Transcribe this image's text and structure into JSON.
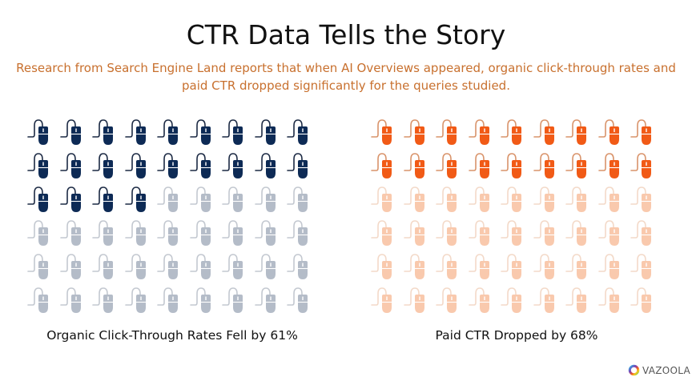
{
  "title": "CTR Data Tells the Story",
  "subtitle": "Research from Search Engine Land reports that when AI Overviews appeared, organic click-through rates and paid CTR dropped  significantly for the queries studied.",
  "colors": {
    "organic_active": "#0d2a55",
    "organic_inactive": "#b4bcc8",
    "paid_active": "#f15a16",
    "paid_inactive": "#f9c9ad",
    "paid_cord_active": "#d9936a",
    "paid_cord_inactive": "#f3d9c8",
    "organic_cord_active": "#1c2a44",
    "organic_cord_inactive": "#c3c8d0",
    "subtitle": "#c8702e"
  },
  "icon": "computer-mouse-icon",
  "charts": {
    "organic": {
      "label": "Organic Click-Through Rates Fell by 61%",
      "total_icons": 54,
      "active_icons": 22
    },
    "paid": {
      "label": "Paid CTR Dropped by 68%",
      "total_icons": 54,
      "active_icons": 18
    }
  },
  "logo": {
    "text": "VAZOOLA"
  },
  "chart_data": [
    {
      "type": "pictogram",
      "title": "Organic Click-Through Rates Fell by 61%",
      "icon": "computer-mouse",
      "grid": {
        "columns": 9,
        "rows": 6
      },
      "total": 54,
      "filled": 22,
      "unfilled": 32,
      "value_percent_drop": 61,
      "filled_color": "#0d2a55",
      "unfilled_color": "#b4bcc8"
    },
    {
      "type": "pictogram",
      "title": "Paid CTR Dropped by 68%",
      "icon": "computer-mouse",
      "grid": {
        "columns": 9,
        "rows": 6
      },
      "total": 54,
      "filled": 18,
      "unfilled": 36,
      "value_percent_drop": 68,
      "filled_color": "#f15a16",
      "unfilled_color": "#f9c9ad"
    }
  ]
}
